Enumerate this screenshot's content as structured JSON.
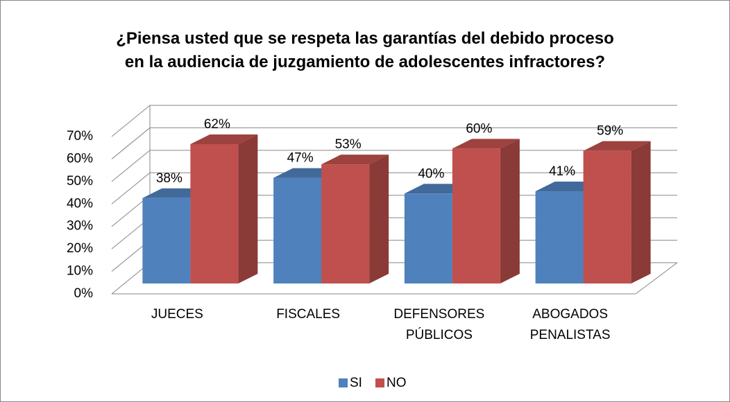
{
  "chart_data": {
    "type": "bar3d",
    "title": "¿Piensa usted que se respeta las garantías del debido proceso\nen la audiencia de juzgamiento de adolescentes infractores?",
    "categories": [
      "JUECES",
      "FISCALES",
      "DEFENSORES PÚBLICOS",
      "ABOGADOS PENALISTAS"
    ],
    "series": [
      {
        "name": "SI",
        "color": "#4f81bd",
        "values": [
          38,
          47,
          40,
          41
        ],
        "value_labels": [
          "38%",
          "47%",
          "40%",
          "41%"
        ]
      },
      {
        "name": "NO",
        "color": "#c0504d",
        "values": [
          62,
          53,
          60,
          59
        ],
        "value_labels": [
          "62%",
          "53%",
          "60%",
          "59%"
        ]
      }
    ],
    "ylim": [
      0,
      70
    ],
    "yticks": [
      {
        "value": 0,
        "label": "0%"
      },
      {
        "value": 10,
        "label": "10%"
      },
      {
        "value": 20,
        "label": "20%"
      },
      {
        "value": 30,
        "label": "30%"
      },
      {
        "value": 40,
        "label": "40%"
      },
      {
        "value": 50,
        "label": "50%"
      },
      {
        "value": 60,
        "label": "60%"
      },
      {
        "value": 70,
        "label": "70%"
      }
    ],
    "grid": true,
    "legend": "bottom"
  }
}
